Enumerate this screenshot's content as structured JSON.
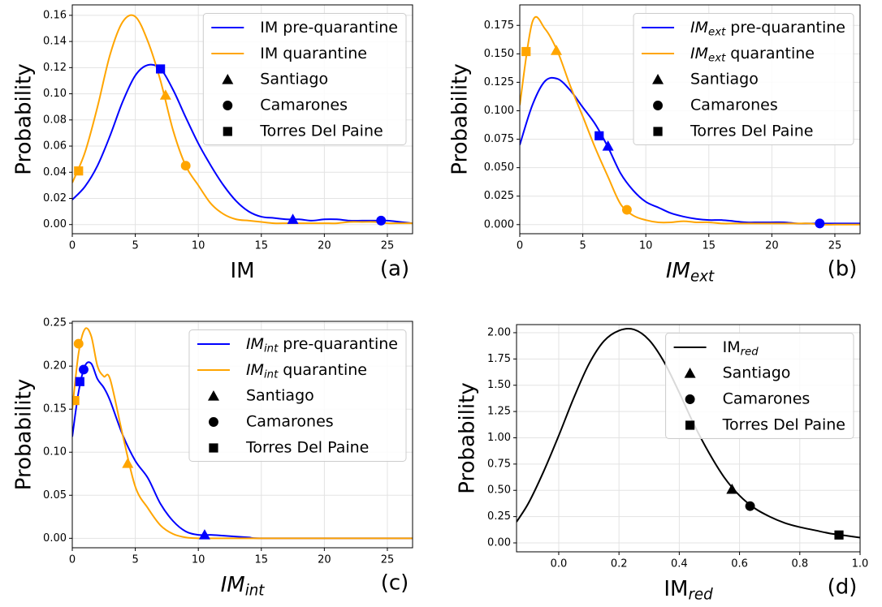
{
  "chart_data": [
    {
      "type": "line",
      "panel_label": "(a)",
      "variable": "IM",
      "ylabel": "Probability",
      "grid": true,
      "legend": "upper right",
      "legend_marker_color": "#000000",
      "markers": [
        {
          "name": "Santiago",
          "shape": "triangle"
        },
        {
          "name": "Camarones",
          "shape": "circle"
        },
        {
          "name": "Torres Del Paine",
          "shape": "square"
        }
      ],
      "x": [
        0,
        1,
        2,
        3,
        4,
        5,
        6,
        7,
        8,
        9,
        10,
        11,
        12,
        13,
        14,
        15,
        16,
        17,
        18,
        19,
        20,
        21,
        22,
        23,
        24,
        25,
        26,
        27
      ],
      "series": [
        {
          "name": "pre-quarantine",
          "color": "#0000ff",
          "values": [
            0.019,
            0.029,
            0.045,
            0.068,
            0.094,
            0.114,
            0.122,
            0.119,
            0.103,
            0.082,
            0.062,
            0.045,
            0.03,
            0.018,
            0.01,
            0.006,
            0.005,
            0.004,
            0.004,
            0.003,
            0.004,
            0.004,
            0.003,
            0.003,
            0.003,
            0.003,
            0.002,
            0.001
          ],
          "marker_x": [
            17.5,
            24.5,
            7.0
          ],
          "marker_y": [
            0.004,
            0.003,
            0.119
          ]
        },
        {
          "name": "quarantine",
          "color": "#ffa500",
          "values": [
            0.032,
            0.055,
            0.09,
            0.13,
            0.155,
            0.159,
            0.14,
            0.11,
            0.072,
            0.045,
            0.03,
            0.016,
            0.008,
            0.004,
            0.003,
            0.002,
            0.001,
            0.001,
            0.001,
            0.001,
            0.001,
            0.001,
            0.002,
            0.002,
            0.002,
            0.001,
            0.001,
            0.001
          ],
          "marker_x": [
            7.4,
            9.0,
            0.5
          ],
          "marker_y": [
            0.099,
            0.045,
            0.041
          ]
        }
      ],
      "xlim": [
        0,
        27
      ],
      "xticks": [
        0,
        5,
        10,
        15,
        20,
        25
      ],
      "ylim": [
        -0.007,
        0.168
      ],
      "yticks": [
        {
          "value": 0,
          "label": "0.00"
        },
        0.02,
        0.04,
        0.06,
        0.08,
        {
          "value": 0.1,
          "label": "0.10"
        },
        0.12,
        0.14,
        0.16
      ]
    },
    {
      "type": "line",
      "panel_label": "(b)",
      "variable": "IM",
      "variable_sub": "ext",
      "math_italic": true,
      "ylabel": "Probability",
      "grid": true,
      "legend": "upper right",
      "legend_marker_color": "#000000",
      "markers": [
        {
          "name": "Santiago",
          "shape": "triangle"
        },
        {
          "name": "Camarones",
          "shape": "circle"
        },
        {
          "name": "Torres Del Paine",
          "shape": "square"
        }
      ],
      "x": [
        0,
        1,
        2,
        3,
        4,
        5,
        6,
        7,
        8,
        9,
        10,
        11,
        12,
        13,
        14,
        15,
        16,
        17,
        18,
        19,
        20,
        21,
        22,
        23,
        24,
        25,
        26,
        27
      ],
      "series": [
        {
          "name": "pre-quarantine",
          "color": "#0000ff",
          "values": [
            0.07,
            0.105,
            0.126,
            0.128,
            0.118,
            0.103,
            0.088,
            0.068,
            0.045,
            0.03,
            0.02,
            0.015,
            0.01,
            0.007,
            0.005,
            0.004,
            0.004,
            0.003,
            0.002,
            0.002,
            0.002,
            0.002,
            0.001,
            0.001,
            0.001,
            0.001,
            0.001,
            0.001
          ],
          "marker_x": [
            7.0,
            23.8,
            6.3
          ],
          "marker_y": [
            0.069,
            0.001,
            0.078
          ]
        },
        {
          "name": "quarantine",
          "color": "#ffa500",
          "values": [
            0.105,
            0.178,
            0.172,
            0.152,
            0.122,
            0.095,
            0.067,
            0.042,
            0.018,
            0.008,
            0.004,
            0.002,
            0.002,
            0.003,
            0.002,
            0.002,
            0.001,
            0.001,
            0.001,
            0.001,
            0.001,
            0.001,
            0.001,
            0.001,
            0.0,
            0.0,
            0.0,
            0.0
          ],
          "marker_x": [
            2.9,
            8.5,
            0.5
          ],
          "marker_y": [
            0.153,
            0.013,
            0.152
          ]
        }
      ],
      "xlim": [
        0,
        27
      ],
      "xticks": [
        0,
        5,
        10,
        15,
        20,
        25
      ],
      "ylim": [
        -0.008,
        0.193
      ],
      "yticks": [
        {
          "value": 0,
          "label": "0.000"
        },
        0.025,
        {
          "value": 0.05,
          "label": "0.050"
        },
        0.075,
        {
          "value": 0.1,
          "label": "0.100"
        },
        0.125,
        {
          "value": 0.15,
          "label": "0.150"
        },
        0.175
      ]
    },
    {
      "type": "line",
      "panel_label": "(c)",
      "variable": "IM",
      "variable_sub": "int",
      "math_italic": true,
      "ylabel": "Probability",
      "grid": true,
      "legend": "upper right",
      "legend_marker_color": "#000000",
      "markers": [
        {
          "name": "Santiago",
          "shape": "triangle"
        },
        {
          "name": "Camarones",
          "shape": "circle"
        },
        {
          "name": "Torres Del Paine",
          "shape": "square"
        }
      ],
      "x": [
        0,
        0.5,
        1,
        1.5,
        2,
        2.5,
        3,
        4,
        5,
        6,
        7,
        8,
        9,
        10,
        11,
        12,
        13,
        14,
        15,
        20,
        25,
        27
      ],
      "series": [
        {
          "name": "pre-quarantine",
          "color": "#0000ff",
          "values": [
            0.118,
            0.17,
            0.2,
            0.203,
            0.185,
            0.175,
            0.16,
            0.12,
            0.09,
            0.07,
            0.04,
            0.02,
            0.008,
            0.004,
            0.004,
            0.003,
            0.002,
            0.001,
            0.0,
            0.0,
            0.0,
            0.0
          ],
          "marker_x": [
            10.5,
            0.9,
            0.6
          ],
          "marker_y": [
            0.004,
            0.196,
            0.182
          ]
        },
        {
          "name": "quarantine",
          "color": "#ffa500",
          "values": [
            0.15,
            0.215,
            0.243,
            0.235,
            0.2,
            0.188,
            0.185,
            0.12,
            0.06,
            0.035,
            0.015,
            0.005,
            0.001,
            0.0,
            0.0,
            0.0,
            0.0,
            0.0,
            0.0,
            0.0,
            0.0,
            0.0
          ],
          "marker_x": [
            4.4,
            0.5,
            0.2
          ],
          "marker_y": [
            0.087,
            0.226,
            0.16
          ]
        }
      ],
      "xlim": [
        0,
        27
      ],
      "xticks": [
        0,
        5,
        10,
        15,
        20,
        25
      ],
      "ylim": [
        -0.011,
        0.252
      ],
      "yticks": [
        {
          "value": 0,
          "label": "0.00"
        },
        0.05,
        {
          "value": 0.1,
          "label": "0.10"
        },
        0.15,
        {
          "value": 0.2,
          "label": "0.20"
        },
        0.25
      ]
    },
    {
      "type": "line",
      "panel_label": "(d)",
      "variable": "IM",
      "variable_sub": "red",
      "ylabel": "Probability",
      "grid": true,
      "legend": "upper right",
      "legend_marker_color": "#000000",
      "markers": [
        {
          "name": "Santiago",
          "shape": "triangle"
        },
        {
          "name": "Camarones",
          "shape": "circle"
        },
        {
          "name": "Torres Del Paine",
          "shape": "square"
        }
      ],
      "x": [
        -0.14,
        -0.1,
        -0.05,
        0,
        0.05,
        0.1,
        0.15,
        0.2,
        0.25,
        0.3,
        0.35,
        0.4,
        0.45,
        0.5,
        0.55,
        0.6,
        0.65,
        0.7,
        0.75,
        0.8,
        0.85,
        0.9,
        0.95,
        1.0
      ],
      "series": [
        {
          "color": "#000000",
          "values": [
            0.2,
            0.38,
            0.68,
            1.02,
            1.38,
            1.7,
            1.92,
            2.02,
            2.03,
            1.93,
            1.72,
            1.43,
            1.12,
            0.85,
            0.62,
            0.45,
            0.33,
            0.25,
            0.19,
            0.15,
            0.12,
            0.09,
            0.07,
            0.05
          ],
          "marker_x": [
            0.575,
            0.635,
            0.93
          ],
          "marker_y": [
            0.51,
            0.35,
            0.075
          ]
        }
      ],
      "xlim": [
        -0.14,
        1.0
      ],
      "xticks": [
        {
          "value": 0,
          "label": "0.0"
        },
        0.2,
        0.4,
        0.6,
        0.8,
        {
          "value": 1,
          "label": "1.0"
        }
      ],
      "ylim": [
        -0.085,
        2.077
      ],
      "yticks": [
        {
          "value": 0,
          "label": "0.00"
        },
        0.25,
        {
          "value": 0.5,
          "label": "0.50"
        },
        0.75,
        {
          "value": 1,
          "label": "1.00"
        },
        1.25,
        {
          "value": 1.5,
          "label": "1.50"
        },
        1.75,
        {
          "value": 2,
          "label": "2.00"
        }
      ]
    }
  ]
}
